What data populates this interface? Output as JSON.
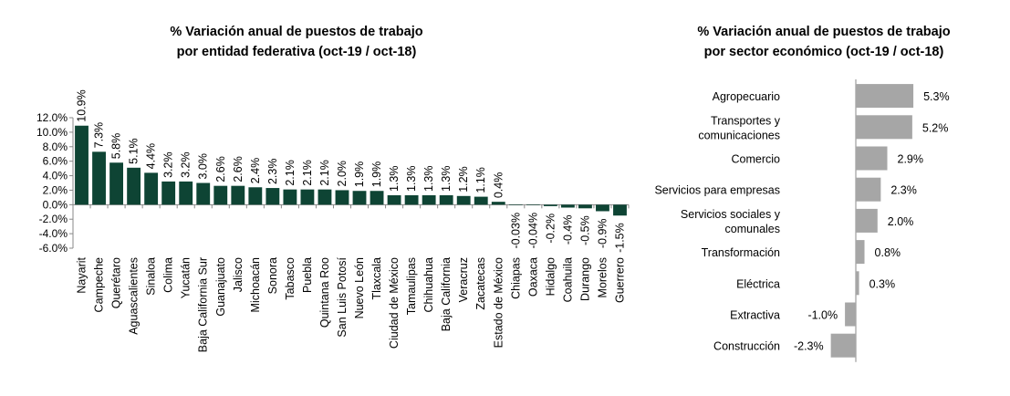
{
  "chart_data": [
    {
      "type": "bar",
      "title": [
        "% Variación anual de puestos de trabajo",
        "por entidad federativa (oct-19 / oct-18)"
      ],
      "orientation": "vertical",
      "ylim": [
        -6,
        12
      ],
      "yticks": [
        "12.0%",
        "10.0%",
        "8.0%",
        "6.0%",
        "4.0%",
        "2.0%",
        "0.0%",
        "-2.0%",
        "-4.0%",
        "-6.0%"
      ],
      "ytick_values": [
        12,
        10,
        8,
        6,
        4,
        2,
        0,
        -2,
        -4,
        -6
      ],
      "bar_color": "#0e4434",
      "categories": [
        "Nayarit",
        "Campeche",
        "Querétaro",
        "Aguascalientes",
        "Sinaloa",
        "Colima",
        "Yucatán",
        "Baja California Sur",
        "Guanajuato",
        "Jalisco",
        "Michoacán",
        "Sonora",
        "Tabasco",
        "Puebla",
        "Quintana Roo",
        "San Luis Potosí",
        "Nuevo León",
        "Tlaxcala",
        "Ciudad de México",
        "Tamaulipas",
        "Chihuahua",
        "Baja California",
        "Veracruz",
        "Zacatecas",
        "Estado de México",
        "Chiapas",
        "Oaxaca",
        "Hidalgo",
        "Coahuila",
        "Durango",
        "Morelos",
        "Guerrero"
      ],
      "values": [
        10.9,
        7.3,
        5.8,
        5.1,
        4.4,
        3.2,
        3.2,
        3.0,
        2.6,
        2.6,
        2.4,
        2.3,
        2.1,
        2.1,
        2.1,
        2.0,
        1.9,
        1.9,
        1.3,
        1.3,
        1.3,
        1.3,
        1.2,
        1.1,
        0.4,
        -0.03,
        -0.04,
        -0.2,
        -0.4,
        -0.5,
        -0.9,
        -1.5
      ],
      "data_labels": [
        "10.9%",
        "7.3%",
        "5.8%",
        "5.1%",
        "4.4%",
        "3.2%",
        "3.2%",
        "3.0%",
        "2.6%",
        "2.6%",
        "2.4%",
        "2.3%",
        "2.1%",
        "2.1%",
        "2.1%",
        "2.0%",
        "1.9%",
        "1.9%",
        "1.3%",
        "1.3%",
        "1.3%",
        "1.3%",
        "1.2%",
        "1.1%",
        "0.4%",
        "-0.03%",
        "-0.04%",
        "-0.2%",
        "-0.4%",
        "-0.5%",
        "-0.9%",
        "-1.5%"
      ],
      "grid": false
    },
    {
      "type": "bar",
      "title": [
        "% Variación anual de puestos de trabajo",
        "por sector económico (oct-19 / oct-18)"
      ],
      "orientation": "horizontal",
      "bar_color": "#a6a6a6",
      "categories": [
        [
          "Agropecuario"
        ],
        [
          "Transportes y",
          "comunicaciones"
        ],
        [
          "Comercio"
        ],
        [
          "Servicios para empresas"
        ],
        [
          "Servicios sociales y",
          "comunales"
        ],
        [
          "Transformación"
        ],
        [
          "Eléctrica"
        ],
        [
          "Extractiva"
        ],
        [
          "Construcción"
        ]
      ],
      "values": [
        5.3,
        5.2,
        2.9,
        2.3,
        2.0,
        0.8,
        0.3,
        -1.0,
        -2.3
      ],
      "data_labels": [
        "5.3%",
        "5.2%",
        "2.9%",
        "2.3%",
        "2.0%",
        "0.8%",
        "0.3%",
        "-1.0%",
        "-2.3%"
      ],
      "grid": false
    }
  ]
}
